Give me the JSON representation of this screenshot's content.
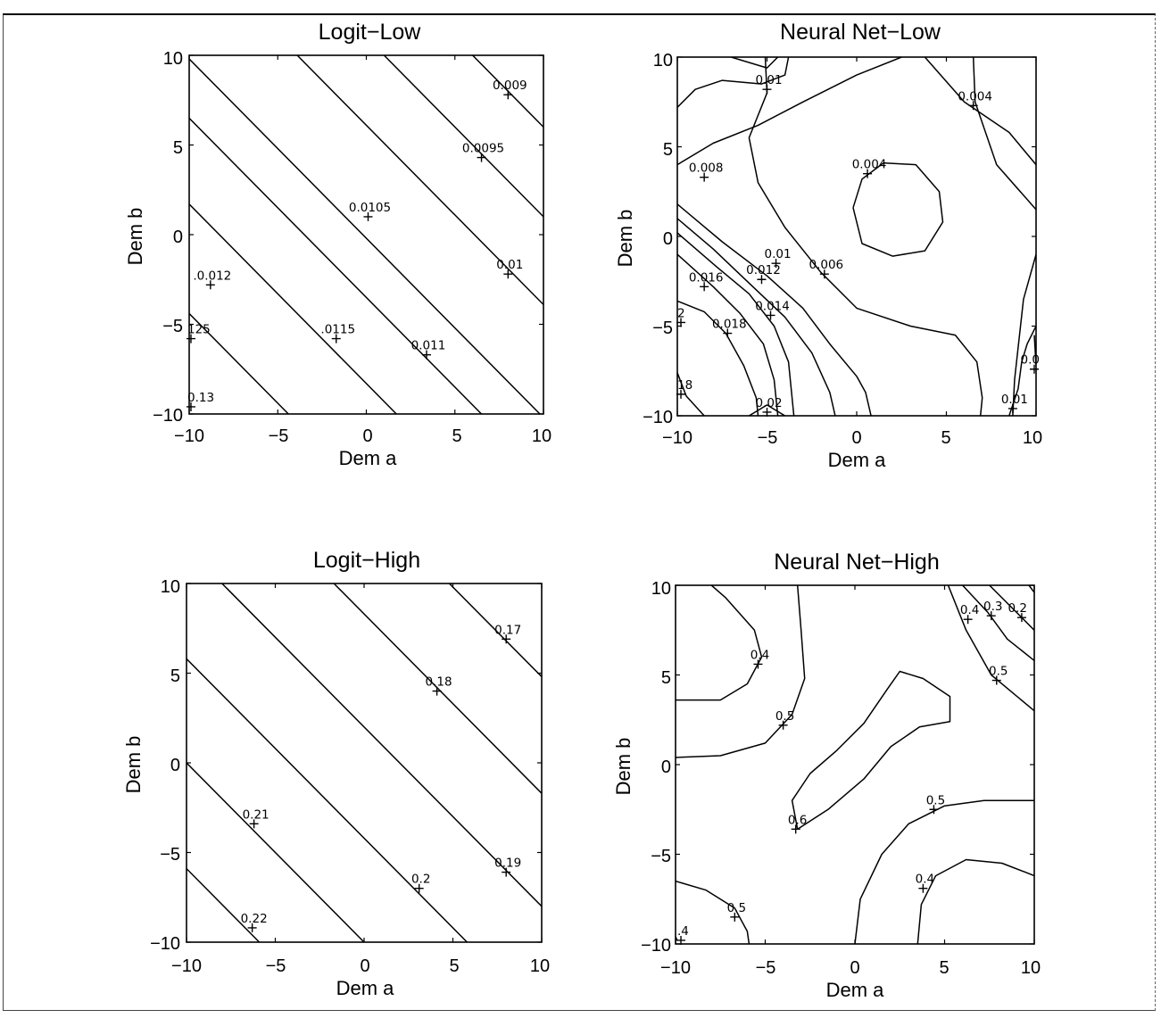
{
  "chart_data": [
    {
      "type": "contour",
      "title": "Logit−Low",
      "xlabel": "Dem a",
      "ylabel": "Dem b",
      "xlim": [
        -10,
        10
      ],
      "ylim": [
        -10,
        10
      ],
      "xticks": [
        "−10",
        "−5",
        "0",
        "5",
        "10"
      ],
      "yticks": [
        "−10",
        "−5",
        "0",
        "5",
        "10"
      ],
      "contours": [
        {
          "points": [
            [
              -3.9,
              10
            ],
            [
              10,
              -3.9
            ]
          ]
        },
        {
          "points": [
            [
              -10,
              1.7
            ],
            [
              1.7,
              -10
            ]
          ]
        },
        {
          "points": [
            [
              -10,
              6.5
            ],
            [
              6.5,
              -10
            ]
          ]
        },
        {
          "points": [
            [
              -10,
              -4.4
            ],
            [
              -4.4,
              -10
            ]
          ]
        },
        {
          "points": [
            [
              -10,
              9.8
            ],
            [
              9.8,
              -10
            ]
          ]
        },
        {
          "points": [
            [
              1,
              10
            ],
            [
              10,
              1
            ]
          ]
        },
        {
          "points": [
            [
              6,
              10
            ],
            [
              10,
              6
            ]
          ]
        }
      ],
      "labels": [
        {
          "text": "0.009",
          "x": 8.0,
          "y": 7.8
        },
        {
          "text": "0.0095",
          "x": 6.5,
          "y": 4.3
        },
        {
          "text": "0.0105",
          "x": 0.1,
          "y": 1.0
        },
        {
          "text": "0.01",
          "x": 8.0,
          "y": -2.2
        },
        {
          "text": ".0.012",
          "x": -8.8,
          "y": -2.8
        },
        {
          "text": ".0115",
          "x": -1.7,
          "y": -5.8
        },
        {
          "text": "0.011",
          "x": 3.4,
          "y": -6.7
        },
        {
          "text": "125",
          "x": -9.9,
          "y": -5.8
        },
        {
          "text": "0.13",
          "x": -9.9,
          "y": -9.6
        }
      ]
    },
    {
      "type": "contour",
      "title": "Neural Net−Low",
      "xlabel": "Dem a",
      "ylabel": "Dem b",
      "xlim": [
        -10,
        10
      ],
      "ylim": [
        -10,
        10
      ],
      "xticks": [
        "−10",
        "−5",
        "0",
        "5",
        "10"
      ],
      "yticks": [
        "−10",
        "−5",
        "0",
        "5",
        "10"
      ],
      "contours": [
        {
          "points": [
            [
              -10,
              7.2
            ],
            [
              -9.0,
              8.2
            ],
            [
              -7.5,
              8.7
            ],
            [
              -5.3,
              8.5
            ],
            [
              -4.0,
              9.0
            ],
            [
              -3.8,
              10
            ]
          ]
        },
        {
          "points": [
            [
              -7.0,
              10
            ],
            [
              -5.0,
              9.4
            ],
            [
              -4.4,
              10
            ]
          ]
        },
        {
          "points": [
            [
              -10,
              4.0
            ],
            [
              -8.0,
              5.2
            ],
            [
              -5.5,
              6.2
            ],
            [
              -3.0,
              7.5
            ],
            [
              0.0,
              9.0
            ],
            [
              2.5,
              10
            ]
          ]
        },
        {
          "points": [
            [
              3.8,
              10
            ],
            [
              6.0,
              7.5
            ],
            [
              8.5,
              5.8
            ],
            [
              10,
              4.0
            ]
          ]
        },
        {
          "points": [
            [
              -5.1,
              10
            ],
            [
              -5.0,
              8.0
            ],
            [
              -6.0,
              5.5
            ],
            [
              -5.5,
              3.0
            ],
            [
              -4.0,
              0.5
            ],
            [
              -2.0,
              -2.0
            ],
            [
              0.0,
              -4.0
            ],
            [
              3.0,
              -5.0
            ],
            [
              5.5,
              -5.5
            ],
            [
              6.7,
              -7.0
            ],
            [
              7.0,
              -9.0
            ],
            [
              6.9,
              -10
            ]
          ]
        },
        {
          "points": [
            [
              6.5,
              10
            ],
            [
              6.6,
              7.5
            ],
            [
              7.8,
              4.0
            ],
            [
              10,
              1.5
            ]
          ]
        },
        {
          "points": [
            [
              -0.2,
              1.6
            ],
            [
              0.3,
              3.2
            ],
            [
              1.5,
              4.1
            ],
            [
              3.3,
              4.0
            ],
            [
              4.6,
              2.5
            ],
            [
              4.8,
              0.8
            ],
            [
              3.8,
              -0.8
            ],
            [
              2.0,
              -1.1
            ],
            [
              0.3,
              -0.4
            ],
            [
              -0.2,
              1.6
            ]
          ]
        },
        {
          "points": [
            [
              -10,
              1.8
            ],
            [
              -7.5,
              -0.3
            ],
            [
              -5.0,
              -2.2
            ],
            [
              -3.0,
              -4.0
            ],
            [
              -1.5,
              -6.0
            ],
            [
              0.0,
              -7.8
            ],
            [
              0.5,
              -8.7
            ],
            [
              0.8,
              -10
            ]
          ]
        },
        {
          "points": [
            [
              -10,
              1.0
            ],
            [
              -8.0,
              -0.7
            ],
            [
              -6.0,
              -2.6
            ],
            [
              -4.0,
              -4.5
            ],
            [
              -2.5,
              -6.5
            ],
            [
              -1.5,
              -8.7
            ],
            [
              -1.2,
              -10
            ]
          ]
        },
        {
          "points": [
            [
              -10,
              0.2
            ],
            [
              -7.8,
              -1.7
            ],
            [
              -6.0,
              -3.2
            ],
            [
              -4.6,
              -5.0
            ],
            [
              -3.8,
              -7.0
            ],
            [
              -3.5,
              -10
            ]
          ]
        },
        {
          "points": [
            [
              -10,
              -1.0
            ],
            [
              -8.0,
              -2.8
            ],
            [
              -6.5,
              -4.3
            ],
            [
              -5.2,
              -6.0
            ],
            [
              -4.6,
              -8.0
            ],
            [
              -4.4,
              -10
            ]
          ]
        },
        {
          "points": [
            [
              -10,
              -3.6
            ],
            [
              -8.5,
              -4.2
            ],
            [
              -7.3,
              -5.4
            ],
            [
              -6.3,
              -7.2
            ],
            [
              -5.6,
              -9.0
            ],
            [
              -5.5,
              -10
            ]
          ]
        },
        {
          "points": [
            [
              -10,
              -7.6
            ],
            [
              -9.5,
              -8.9
            ],
            [
              -8.5,
              -10
            ]
          ]
        },
        {
          "points": [
            [
              -6.0,
              -10
            ],
            [
              -5.0,
              -9.4
            ],
            [
              -4.0,
              -10
            ]
          ]
        },
        {
          "points": [
            [
              8.5,
              -10
            ],
            [
              9.0,
              -8.5
            ],
            [
              9.2,
              -7.0
            ],
            [
              9.5,
              -6.0
            ],
            [
              10,
              -5.0
            ]
          ]
        },
        {
          "points": [
            [
              10,
              -7.2
            ],
            [
              9.9,
              -5.5
            ]
          ]
        },
        {
          "points": [
            [
              10,
              -1.0
            ],
            [
              9.3,
              -3.5
            ],
            [
              9.0,
              -6.2
            ],
            [
              8.8,
              -8.0
            ],
            [
              8.7,
              -10
            ]
          ]
        }
      ],
      "labels": [
        {
          "text": "0.01",
          "x": -5.0,
          "y": 8.2
        },
        {
          "text": "0.004",
          "x": 6.5,
          "y": 7.3
        },
        {
          "text": "0.008",
          "x": -8.5,
          "y": 3.3
        },
        {
          "text": "0.004",
          "x": 0.6,
          "y": 3.5
        },
        {
          "text": "0.01",
          "x": -4.5,
          "y": -1.5
        },
        {
          "text": "0.016",
          "x": -8.5,
          "y": -2.8
        },
        {
          "text": "0.012",
          "x": -5.3,
          "y": -2.4
        },
        {
          "text": "0.006",
          "x": -1.8,
          "y": -2.1
        },
        {
          "text": "0.014",
          "x": -4.8,
          "y": -4.4
        },
        {
          "text": "0.018",
          "x": -7.2,
          "y": -5.4
        },
        {
          "text": "2",
          "x": -9.8,
          "y": -4.8
        },
        {
          "text": "0.0",
          "x": 9.9,
          "y": -7.4
        },
        {
          "text": "18",
          "x": -9.8,
          "y": -8.8
        },
        {
          "text": "0.02",
          "x": -5.0,
          "y": -9.8
        },
        {
          "text": "0.01",
          "x": 8.7,
          "y": -9.6
        }
      ]
    },
    {
      "type": "contour",
      "title": "Logit−High",
      "xlabel": "Dem a",
      "ylabel": "Dem b",
      "xlim": [
        -10,
        10
      ],
      "ylim": [
        -10,
        10
      ],
      "xticks": [
        "−10",
        "−5",
        "0",
        "5",
        "10"
      ],
      "yticks": [
        "−10",
        "−5",
        "0",
        "5",
        "10"
      ],
      "contours": [
        {
          "points": [
            [
              -8.0,
              10
            ],
            [
              10,
              -8.0
            ]
          ]
        },
        {
          "points": [
            [
              -10,
              5.8
            ],
            [
              5.8,
              -10
            ]
          ]
        },
        {
          "points": [
            [
              -10,
              0.0
            ],
            [
              0.0,
              -10
            ]
          ]
        },
        {
          "points": [
            [
              -10,
              -5.9
            ],
            [
              -5.9,
              -10
            ]
          ]
        },
        {
          "points": [
            [
              -1.7,
              10
            ],
            [
              10,
              -1.7
            ]
          ]
        },
        {
          "points": [
            [
              4.8,
              10
            ],
            [
              10,
              4.8
            ]
          ]
        }
      ],
      "labels": [
        {
          "text": "0.17",
          "x": 8.0,
          "y": 6.9
        },
        {
          "text": "0.18",
          "x": 4.1,
          "y": 4.0
        },
        {
          "text": "0.21",
          "x": -6.2,
          "y": -3.4
        },
        {
          "text": "0.19",
          "x": 8.0,
          "y": -6.1
        },
        {
          "text": "0.2",
          "x": 3.1,
          "y": -7.0
        },
        {
          "text": "0.22",
          "x": -6.3,
          "y": -9.2
        }
      ]
    },
    {
      "type": "contour",
      "title": "Neural Net−High",
      "xlabel": "Dem a",
      "ylabel": "Dem b",
      "xlim": [
        -10,
        10
      ],
      "ylim": [
        -10,
        10
      ],
      "xticks": [
        "−10",
        "−5",
        "0",
        "5",
        "10"
      ],
      "yticks": [
        "−10",
        "−5",
        "0",
        "5",
        "10"
      ],
      "contours": [
        {
          "points": [
            [
              -10,
              3.6
            ],
            [
              -7.5,
              3.6
            ],
            [
              -6.0,
              4.5
            ],
            [
              -5.2,
              6.0
            ],
            [
              -5.6,
              7.5
            ],
            [
              -7.2,
              9.3
            ],
            [
              -8.0,
              10
            ]
          ]
        },
        {
          "points": [
            [
              -3.2,
              10
            ],
            [
              -3.0,
              7.5
            ],
            [
              -2.8,
              4.8
            ],
            [
              -3.5,
              2.8
            ],
            [
              -5.0,
              1.2
            ],
            [
              -7.5,
              0.5
            ],
            [
              -10,
              0.4
            ]
          ]
        },
        {
          "points": [
            [
              6.0,
              10
            ],
            [
              7.4,
              8.5
            ],
            [
              8.5,
              7.0
            ],
            [
              10,
              5.8
            ]
          ]
        },
        {
          "points": [
            [
              7.5,
              10
            ],
            [
              9.0,
              8.5
            ],
            [
              10,
              7.5
            ]
          ]
        },
        {
          "points": [
            [
              5.2,
              10
            ],
            [
              6.2,
              7.5
            ],
            [
              7.6,
              5.0
            ],
            [
              10,
              3.0
            ]
          ]
        },
        {
          "points": [
            [
              10,
              9.6
            ],
            [
              9.7,
              10
            ]
          ]
        },
        {
          "points": [
            [
              -3.2,
              -3.6
            ],
            [
              -3.5,
              -2.0
            ],
            [
              -2.5,
              -0.5
            ],
            [
              -1.0,
              0.8
            ],
            [
              0.5,
              2.3
            ],
            [
              1.8,
              4.2
            ],
            [
              2.5,
              5.2
            ],
            [
              3.8,
              4.8
            ],
            [
              5.3,
              3.8
            ],
            [
              5.3,
              2.4
            ],
            [
              3.6,
              2.1
            ],
            [
              2.0,
              1.0
            ],
            [
              0.5,
              -0.8
            ],
            [
              -1.5,
              -2.5
            ],
            [
              -3.2,
              -3.6
            ]
          ]
        },
        {
          "points": [
            [
              -5.9,
              -10
            ],
            [
              -6.0,
              -9.3
            ],
            [
              -6.7,
              -8.0
            ],
            [
              -8.3,
              -7.0
            ],
            [
              -10,
              -6.5
            ]
          ]
        },
        {
          "points": [
            [
              -9.9,
              -9.8
            ],
            [
              -10,
              -9.6
            ]
          ]
        },
        {
          "points": [
            [
              0.0,
              -10
            ],
            [
              0.3,
              -7.5
            ],
            [
              1.5,
              -5.0
            ],
            [
              3.0,
              -3.3
            ],
            [
              5.0,
              -2.3
            ],
            [
              7.2,
              -2.0
            ],
            [
              10,
              -2.0
            ]
          ]
        },
        {
          "points": [
            [
              3.5,
              -10
            ],
            [
              3.7,
              -7.8
            ],
            [
              4.5,
              -6.2
            ],
            [
              6.2,
              -5.3
            ],
            [
              8.2,
              -5.5
            ],
            [
              9.5,
              -6.0
            ],
            [
              10,
              -6.2
            ]
          ]
        }
      ],
      "labels": [
        {
          "text": "0.4",
          "x": 6.3,
          "y": 8.1
        },
        {
          "text": "0.3",
          "x": 7.6,
          "y": 8.3
        },
        {
          "text": "0.2",
          "x": 9.3,
          "y": 8.2
        },
        {
          "text": "0.4",
          "x": -5.4,
          "y": 5.6
        },
        {
          "text": "0.5",
          "x": 7.9,
          "y": 4.7
        },
        {
          "text": "0.5",
          "x": -4.0,
          "y": 2.2
        },
        {
          "text": "0.5",
          "x": 4.4,
          "y": -2.5
        },
        {
          "text": "0.6",
          "x": -3.3,
          "y": -3.6
        },
        {
          "text": "0.4",
          "x": 3.8,
          "y": -6.9
        },
        {
          "text": "0.5",
          "x": -6.7,
          "y": -8.5
        },
        {
          "text": ".4",
          "x": -9.7,
          "y": -9.8
        }
      ]
    }
  ]
}
